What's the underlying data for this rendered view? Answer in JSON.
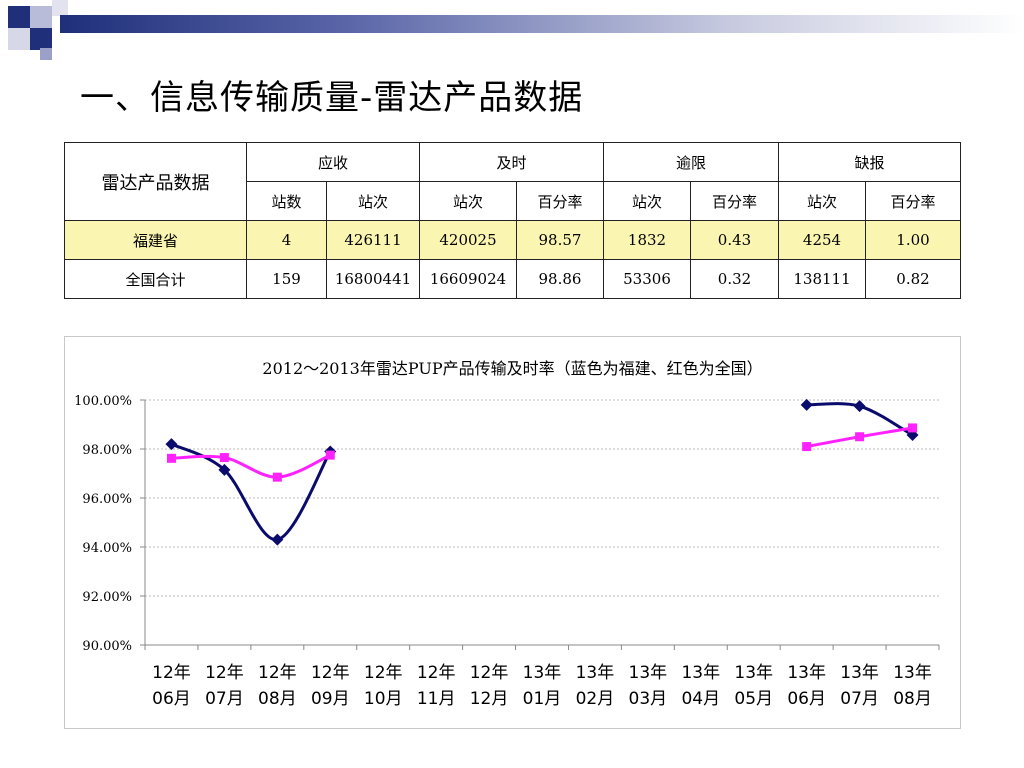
{
  "page_title": "一、信息传输质量-雷达产品数据",
  "table": {
    "row_header": "雷达产品数据",
    "groups": [
      "应收",
      "及时",
      "逾限",
      "缺报"
    ],
    "subheaders": [
      "站数",
      "站次",
      "站次",
      "百分率",
      "站次",
      "百分率",
      "站次",
      "百分率"
    ],
    "rows": [
      {
        "name": "福建省",
        "cells": [
          "4",
          "426111",
          "420025",
          "98.57",
          "1832",
          "0.43",
          "4254",
          "1.00"
        ]
      },
      {
        "name": "全国合计",
        "cells": [
          "159",
          "16800441",
          "16609024",
          "98.86",
          "53306",
          "0.32",
          "138111",
          "0.82"
        ]
      }
    ]
  },
  "colors": {
    "fujian": "#0b0b6e",
    "national": "#ff22ff",
    "highlight_row": "#faf5b0",
    "header_bar": "#1f2f7a"
  },
  "chart_data": {
    "type": "line",
    "title": "2012～2013年雷达PUP产品传输及时率（蓝色为福建、红色为全国）",
    "categories": [
      "12年06月",
      "12年07月",
      "12年08月",
      "12年09月",
      "12年10月",
      "12年11月",
      "12年12月",
      "13年01月",
      "13年02月",
      "13年03月",
      "13年04月",
      "13年05月",
      "13年06月",
      "13年07月",
      "13年08月"
    ],
    "yticks": [
      "100.00%",
      "98.00%",
      "96.00%",
      "94.00%",
      "92.00%",
      "90.00%"
    ],
    "ylim": [
      90,
      100
    ],
    "grid": true,
    "series": [
      {
        "color": "#0b0b6e",
        "marker": "diamond",
        "values": [
          98.2,
          97.15,
          94.3,
          97.9,
          null,
          null,
          null,
          null,
          null,
          null,
          null,
          null,
          99.8,
          99.75,
          98.57
        ]
      },
      {
        "color": "#ff22ff",
        "marker": "square",
        "values": [
          97.62,
          97.65,
          96.85,
          97.75,
          null,
          null,
          null,
          null,
          null,
          null,
          null,
          null,
          98.1,
          98.5,
          98.86
        ]
      }
    ]
  }
}
